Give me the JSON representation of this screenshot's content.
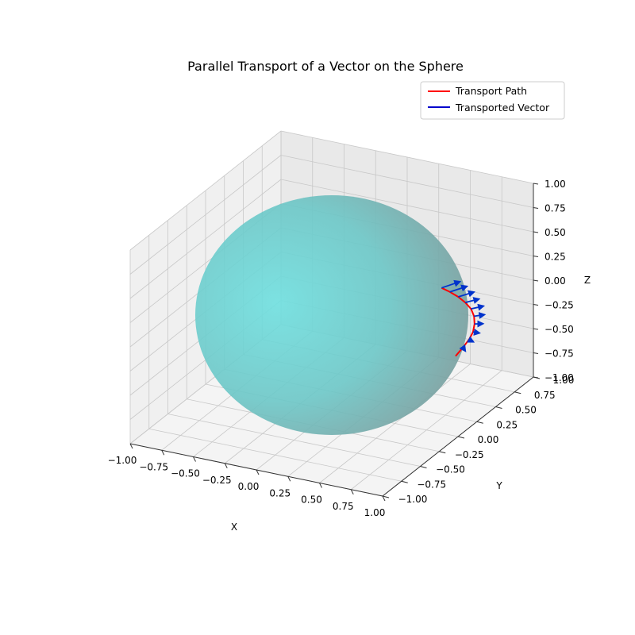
{
  "chart_data": {
    "type": "3d-surface-with-curve-and-vectors",
    "title": "Parallel Transport of a Vector on the Sphere",
    "xlabel": "X",
    "ylabel": "Y",
    "zlabel": "Z",
    "xlim": [
      -1,
      1
    ],
    "ylim": [
      -1,
      1
    ],
    "zlim": [
      -1,
      1
    ],
    "x_ticks": [
      "−1.00",
      "−0.75",
      "−0.50",
      "−0.25",
      "0.00",
      "0.25",
      "0.50",
      "0.75",
      "1.00"
    ],
    "y_ticks": [
      "−1.00",
      "−0.75",
      "−0.50",
      "−0.25",
      "0.00",
      "0.25",
      "0.50",
      "0.75",
      "1.00"
    ],
    "z_ticks": [
      "−1.00",
      "−0.75",
      "−0.50",
      "−0.25",
      "0.00",
      "0.25",
      "0.50",
      "0.75",
      "1.00"
    ],
    "tick_values": [
      -1,
      -0.75,
      -0.5,
      -0.25,
      0,
      0.25,
      0.5,
      0.75,
      1
    ],
    "grid": true,
    "legend_position": "top-right",
    "surface": {
      "name": "unit sphere",
      "radius": 1,
      "color": "#5fd6d6",
      "alpha": 0.75
    },
    "series": [
      {
        "name": "Transport Path",
        "kind": "line",
        "color": "#ff0000",
        "points": [
          [
            0.87,
            0.0,
            0.5
          ],
          [
            0.9,
            0.06,
            0.43
          ],
          [
            0.93,
            0.12,
            0.35
          ],
          [
            0.95,
            0.18,
            0.26
          ],
          [
            0.96,
            0.24,
            0.16
          ],
          [
            0.96,
            0.28,
            0.06
          ],
          [
            0.94,
            0.32,
            -0.05
          ],
          [
            0.91,
            0.35,
            -0.16
          ],
          [
            0.86,
            0.38,
            -0.27
          ],
          [
            0.8,
            0.4,
            -0.38
          ],
          [
            0.73,
            0.42,
            -0.5
          ]
        ]
      },
      {
        "name": "Transported Vector",
        "kind": "quiver",
        "color": "#0000cc",
        "vectors": [
          {
            "base": [
              0.87,
              0.0,
              0.5
            ],
            "dir": [
              0.05,
              0.16,
              -0.02
            ]
          },
          {
            "base": [
              0.9,
              0.06,
              0.43
            ],
            "dir": [
              0.04,
              0.16,
              -0.03
            ]
          },
          {
            "base": [
              0.93,
              0.12,
              0.35
            ],
            "dir": [
              0.03,
              0.16,
              -0.04
            ]
          },
          {
            "base": [
              0.95,
              0.18,
              0.26
            ],
            "dir": [
              0.02,
              0.15,
              -0.05
            ]
          },
          {
            "base": [
              0.96,
              0.24,
              0.16
            ],
            "dir": [
              0.01,
              0.15,
              -0.06
            ]
          },
          {
            "base": [
              0.96,
              0.28,
              0.06
            ],
            "dir": [
              0.0,
              0.14,
              -0.07
            ]
          },
          {
            "base": [
              0.94,
              0.32,
              -0.05
            ],
            "dir": [
              -0.01,
              0.13,
              -0.08
            ]
          },
          {
            "base": [
              0.91,
              0.35,
              -0.16
            ],
            "dir": [
              -0.02,
              0.12,
              -0.09
            ]
          },
          {
            "base": [
              0.86,
              0.38,
              -0.27
            ],
            "dir": [
              -0.03,
              0.11,
              -0.1
            ]
          },
          {
            "base": [
              0.8,
              0.4,
              -0.38
            ],
            "dir": [
              -0.04,
              0.1,
              -0.11
            ]
          }
        ]
      }
    ],
    "legend": [
      {
        "label": "Transport Path",
        "color": "#ff0000"
      },
      {
        "label": "Transported Vector",
        "color": "#0000cc"
      }
    ]
  }
}
